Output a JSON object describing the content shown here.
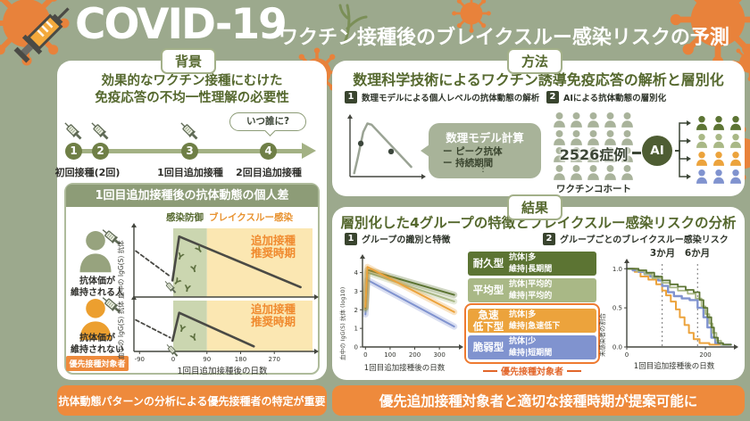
{
  "header": {
    "brand": "COVID-19",
    "subtitle": "ワクチン接種後のブレイクスルー感染リスクの予測"
  },
  "background": {
    "badge": "背景",
    "heading1": "効果的なワクチン接種にむけた",
    "heading2": "免疫応答の不均一性理解の必要性",
    "timeline": {
      "step1": "1",
      "step2": "2",
      "step3": "3",
      "step4": "4",
      "label12": "初回接種(2回)",
      "label3": "1回目追加接種",
      "label4": "2回目追加接種",
      "bubble": "いつ誰に?"
    },
    "subbox": {
      "header": "1回目追加接種後の抗体動態の個人差",
      "legend_protect": "感染防御",
      "legend_breakthrough": "ブレイクスルー感染",
      "booster_line1": "追加接種",
      "booster_line2": "推奨時期",
      "person_maintained": "抗体価が\n維持される人",
      "person_not_maintained": "抗体価が\n維持されない人",
      "priority_badge": "優先接種対象者",
      "ylabel": "血中の IgG(S) 抗体",
      "xlabel": "1回目追加接種後の日数"
    },
    "banner": "抗体動態パターンの分析による優先接種者の特定が重要"
  },
  "method": {
    "badge": "方法",
    "heading": "数理科学技術によるワクチン誘導免疫応答の解析と層別化",
    "item1_num": "1",
    "item1": "数理モデルによる個人レベルの抗体動態の解析",
    "item2_num": "2",
    "item2": "AIによる抗体動態の層別化",
    "bubble_title": "数理モデル計算",
    "bubble_line1": "ー ピーク抗体",
    "bubble_line2": "ー 持続期間",
    "bubble_dots": "⋮",
    "cohort_count": "2526症例",
    "cohort_label": "ワクチンコホート",
    "ai_label": "AI"
  },
  "results": {
    "badge": "結果",
    "heading": "層別化した4グループの特徴とブレイクスルー感染リスクの分析",
    "item1_num": "1",
    "item1": "グループの識別と特徴",
    "item2_num": "2",
    "item2": "グループごとのブレイクスルー感染リスク",
    "groups": [
      {
        "name": "耐久型",
        "line1": "抗体|多",
        "line2": "維持|長期間",
        "color": "#5C7433"
      },
      {
        "name": "平均型",
        "line1": "抗体|平均的",
        "line2": "維持|平均的",
        "color": "#A9B886"
      },
      {
        "name": "急速\n低下型",
        "line1": "抗体|多",
        "line2": "維持|急速低下",
        "color": "#ECA33C"
      },
      {
        "name": "脆弱型",
        "line1": "抗体|少",
        "line2": "維持|短期間",
        "color": "#8093CF"
      }
    ],
    "priority_label": "優先接種対象者",
    "chart1": {
      "ylabel": "血中の IgG(S) 抗体 (log10)",
      "xlabel": "1回目追加接種後の日数"
    },
    "chart2": {
      "ylabel": "未感染者の割合",
      "xlabel": "1回目追加接種後の日数",
      "m3": "3か月",
      "m6": "6か月"
    },
    "banner": "優先追加接種対象者と適切な接種時期が提案可能に"
  },
  "chart_data": [
    {
      "id": "bg1",
      "type": "line",
      "ylabel": "血中の IgG(S) 抗体",
      "xlabel": "",
      "xlim": [
        -105,
        372
      ],
      "ylim": [
        0,
        5
      ],
      "m": [
        5,
        2,
        6,
        4
      ],
      "regions": [
        {
          "x0": 0,
          "x1": 90,
          "color": "#CBD6B0"
        },
        {
          "x0": 90,
          "x1": 372,
          "color": "#FBE7B2"
        }
      ],
      "series": [
        {
          "name": "pre-boost",
          "color": "#4A4A45",
          "w": 1.8,
          "dash": "4,3",
          "points": [
            [
              -100,
              3.35
            ],
            [
              -8,
              1.5
            ]
          ]
        },
        {
          "name": "antibody-maintained",
          "color": "#4A4A45",
          "w": 2.6,
          "points": [
            [
              -2,
              1.2
            ],
            [
              16,
              4.4
            ],
            [
              340,
              0.72
            ]
          ]
        }
      ]
    },
    {
      "id": "bg2",
      "type": "line",
      "ylabel": "血中の IgG(S) 抗体",
      "xlabel": "1回目追加接種後の日数",
      "xlim": [
        -105,
        372
      ],
      "ylim": [
        0,
        5
      ],
      "m": [
        5,
        2,
        16,
        4
      ],
      "regions": [
        {
          "x0": 0,
          "x1": 90,
          "color": "#CBD6B0"
        },
        {
          "x0": 90,
          "x1": 372,
          "color": "#FBE7B2"
        }
      ],
      "xticks": [
        {
          "v": -90,
          "l": "-90"
        },
        {
          "v": 0,
          "l": "0"
        },
        {
          "v": 90,
          "l": "90"
        },
        {
          "v": 180,
          "l": "180"
        },
        {
          "v": 270,
          "l": "270"
        }
      ],
      "series": [
        {
          "name": "pre-boost",
          "color": "#4A4A45",
          "w": 1.8,
          "dash": "4,3",
          "points": [
            [
              -100,
              3.1
            ],
            [
              -8,
              1.35
            ]
          ]
        },
        {
          "name": "antibody-not-maintained",
          "color": "#4A4A45",
          "w": 2.6,
          "points": [
            [
              -2,
              1.05
            ],
            [
              16,
              3.8
            ],
            [
              215,
              0.5
            ]
          ]
        }
      ]
    },
    {
      "id": "model",
      "type": "line",
      "ylabel": "",
      "xlabel": "",
      "xlim": [
        0,
        10
      ],
      "ylim": [
        0,
        10
      ],
      "m": [
        4,
        4,
        6,
        6
      ],
      "series": [
        {
          "name": "antibody-curve",
          "color": "#9AA394",
          "w": 2.5,
          "points": [
            [
              0.6,
              0.6
            ],
            [
              1.1,
              3.2
            ],
            [
              1.9,
              7.8
            ],
            [
              2.5,
              9.3
            ],
            [
              3.1,
              9.1
            ],
            [
              8.8,
              1.7
            ]
          ]
        }
      ],
      "dots": [
        {
          "x": 1.55,
          "y": 5.8
        },
        {
          "x": 5.9,
          "y": 4.4
        }
      ],
      "dot_color": "#3C463C"
    },
    {
      "id": "groups-antibody",
      "type": "line",
      "ylabel": "血中の IgG(S) 抗体 (log10)",
      "xlabel": "1回目追加接種後の日数",
      "xlim": [
        -12,
        372
      ],
      "ylim": [
        0,
        4.7
      ],
      "m": [
        5,
        4,
        15,
        16
      ],
      "yticks": [
        {
          "v": 0,
          "l": "0"
        },
        {
          "v": 1,
          "l": "1"
        },
        {
          "v": 2,
          "l": "2"
        },
        {
          "v": 3,
          "l": "3"
        },
        {
          "v": 4,
          "l": "4"
        }
      ],
      "xticks": [
        {
          "v": 0,
          "l": "0"
        },
        {
          "v": 100,
          "l": "100"
        },
        {
          "v": 200,
          "l": "200"
        },
        {
          "v": 300,
          "l": "300"
        }
      ],
      "series": [
        {
          "name": "脆弱型",
          "color": "#8093CF",
          "w": 2,
          "band": 7,
          "points": [
            [
              0,
              1.75
            ],
            [
              8,
              3.6
            ],
            [
              360,
              1.1
            ]
          ]
        },
        {
          "name": "平均型",
          "color": "#A9B886",
          "w": 2,
          "band": 7,
          "points": [
            [
              0,
              2.0
            ],
            [
              8,
              4.0
            ],
            [
              360,
              2.45
            ]
          ]
        },
        {
          "name": "耐久型",
          "color": "#5C7433",
          "w": 2,
          "band": 7,
          "points": [
            [
              0,
              2.1
            ],
            [
              8,
              4.15
            ],
            [
              360,
              2.8
            ]
          ]
        },
        {
          "name": "急速低下型",
          "color": "#ECA33C",
          "w": 2,
          "band": 7,
          "points": [
            [
              0,
              2.15
            ],
            [
              8,
              4.3
            ],
            [
              360,
              1.88
            ]
          ]
        }
      ]
    },
    {
      "id": "breakthrough-risk",
      "type": "step",
      "ylabel": "未感染者の割合",
      "xlabel": "1回目追加接種後の日数",
      "xlim": [
        0,
        268
      ],
      "ylim": [
        0,
        1.06
      ],
      "m": [
        6,
        8,
        15,
        20
      ],
      "yticks": [
        {
          "v": 1,
          "l": "1.0"
        },
        {
          "v": 0.5,
          "l": "0.5"
        },
        {
          "v": 0,
          "l": "0.0"
        }
      ],
      "xticks": [
        {
          "v": 0,
          "l": "0"
        },
        {
          "v": 200,
          "l": "200"
        }
      ],
      "vlines": [
        {
          "v": 90,
          "label": "3か月"
        },
        {
          "v": 180,
          "label": "6か月"
        }
      ],
      "series": [
        {
          "name": "急速低下型",
          "color": "#ECA33C",
          "w": 2,
          "step": true,
          "points": [
            [
              0,
              1
            ],
            [
              20,
              0.96
            ],
            [
              35,
              0.9
            ],
            [
              55,
              0.86
            ],
            [
              75,
              0.8
            ],
            [
              90,
              0.72
            ],
            [
              100,
              0.66
            ],
            [
              112,
              0.58
            ],
            [
              125,
              0.48
            ],
            [
              135,
              0.38
            ],
            [
              147,
              0.28
            ],
            [
              158,
              0.18
            ],
            [
              170,
              0.1
            ],
            [
              185,
              0.05
            ],
            [
              210,
              0.03
            ],
            [
              265,
              0.03
            ]
          ]
        },
        {
          "name": "脆弱型",
          "color": "#8093CF",
          "w": 2.4,
          "step": true,
          "points": [
            [
              0,
              1
            ],
            [
              15,
              0.98
            ],
            [
              30,
              0.96
            ],
            [
              45,
              0.93
            ],
            [
              60,
              0.9
            ],
            [
              80,
              0.85
            ],
            [
              90,
              0.78
            ],
            [
              105,
              0.7
            ],
            [
              120,
              0.65
            ],
            [
              140,
              0.62
            ],
            [
              160,
              0.6
            ],
            [
              180,
              0.5
            ],
            [
              195,
              0.38
            ],
            [
              205,
              0.25
            ],
            [
              215,
              0.12
            ],
            [
              225,
              0.05
            ],
            [
              240,
              0.03
            ],
            [
              265,
              0.03
            ]
          ]
        },
        {
          "name": "平均型",
          "color": "#A9B886",
          "w": 1.8,
          "step": true,
          "points": [
            [
              0,
              1
            ],
            [
              25,
              0.97
            ],
            [
              45,
              0.93
            ],
            [
              65,
              0.88
            ],
            [
              90,
              0.82
            ],
            [
              110,
              0.76
            ],
            [
              130,
              0.72
            ],
            [
              155,
              0.68
            ],
            [
              175,
              0.62
            ],
            [
              190,
              0.52
            ],
            [
              200,
              0.42
            ],
            [
              210,
              0.3
            ],
            [
              218,
              0.18
            ],
            [
              228,
              0.08
            ],
            [
              240,
              0.03
            ],
            [
              265,
              0.03
            ]
          ]
        },
        {
          "name": "耐久型",
          "color": "#5C7433",
          "w": 1.8,
          "step": true,
          "points": [
            [
              0,
              1
            ],
            [
              30,
              0.98
            ],
            [
              50,
              0.95
            ],
            [
              70,
              0.9
            ],
            [
              90,
              0.85
            ],
            [
              110,
              0.8
            ],
            [
              130,
              0.77
            ],
            [
              150,
              0.73
            ],
            [
              170,
              0.7
            ],
            [
              185,
              0.6
            ],
            [
              195,
              0.5
            ],
            [
              205,
              0.38
            ],
            [
              215,
              0.25
            ],
            [
              222,
              0.12
            ],
            [
              232,
              0.05
            ],
            [
              245,
              0.03
            ],
            [
              265,
              0.03
            ]
          ]
        }
      ]
    }
  ]
}
